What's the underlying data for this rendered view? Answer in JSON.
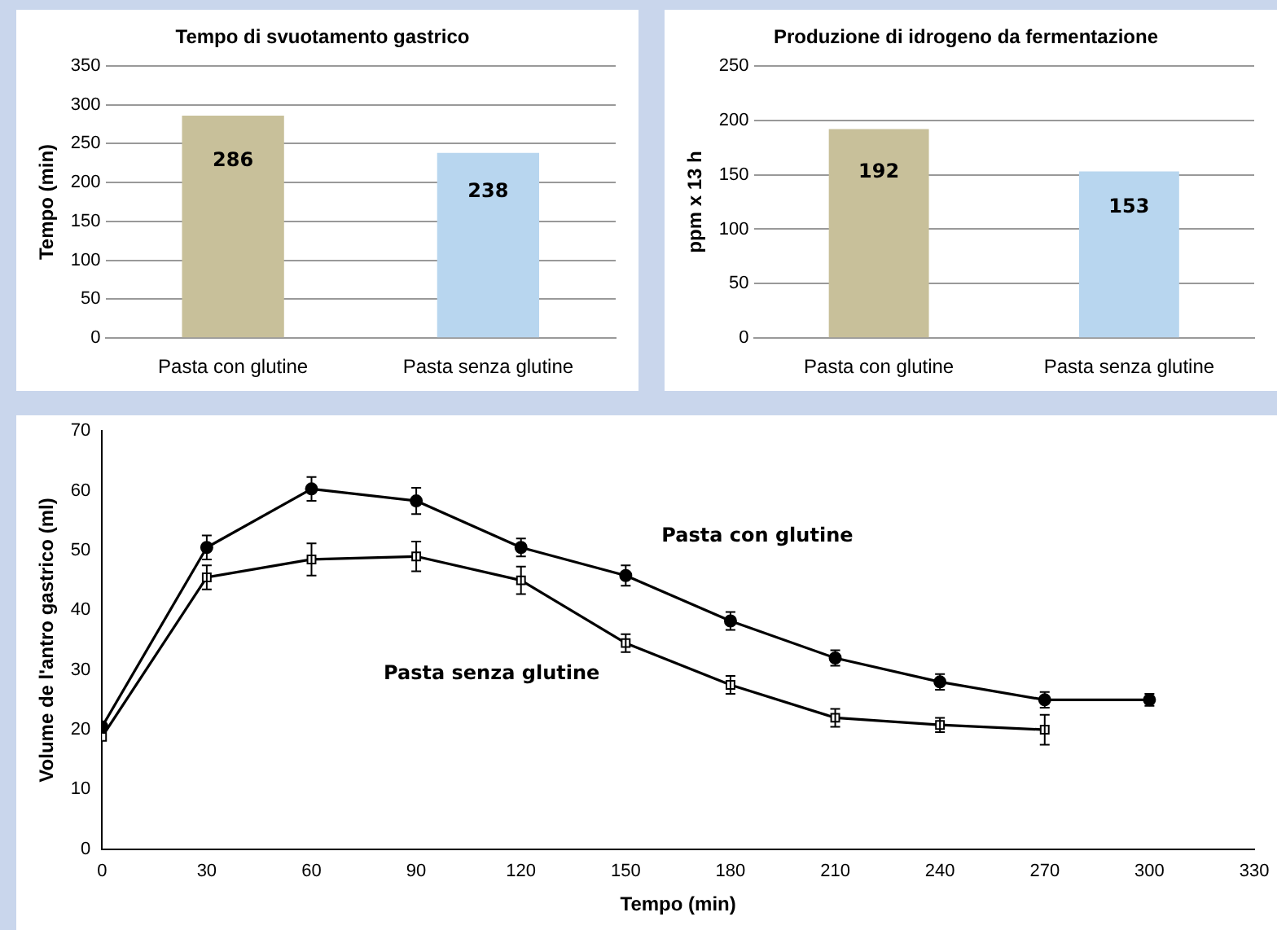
{
  "chart_data": [
    {
      "type": "bar",
      "title": "Tempo di svuotamento gastrico",
      "ylabel": "Tempo (min)",
      "categories": [
        "Pasta con glutine",
        "Pasta senza glutine"
      ],
      "values": [
        286,
        238
      ],
      "colors": [
        "#c8c09a",
        "#b8d6ef"
      ],
      "ylim": [
        0,
        350
      ],
      "yticks": [
        0,
        50,
        100,
        150,
        200,
        250,
        300,
        350
      ],
      "grid": "y",
      "data_labels": true,
      "legend": false
    },
    {
      "type": "bar",
      "title": "Produzione di idrogeno da fermentazione",
      "ylabel": "ppm x 13 h",
      "categories": [
        "Pasta con glutine",
        "Pasta senza glutine"
      ],
      "values": [
        192,
        153
      ],
      "colors": [
        "#c8c09a",
        "#b8d6ef"
      ],
      "ylim": [
        0,
        250
      ],
      "yticks": [
        0,
        50,
        100,
        150,
        200,
        250
      ],
      "grid": "y",
      "data_labels": true,
      "legend": false
    },
    {
      "type": "line",
      "xlabel": "Tempo (min)",
      "ylabel": "Volume de l'antro gastrico (ml)",
      "x": [
        0,
        30,
        60,
        90,
        120,
        150,
        180,
        210,
        240,
        270,
        300
      ],
      "xlim": [
        0,
        330
      ],
      "xticks": [
        0,
        30,
        60,
        90,
        120,
        150,
        180,
        210,
        240,
        270,
        300,
        330
      ],
      "ylim": [
        0,
        70
      ],
      "yticks": [
        0,
        10,
        20,
        30,
        40,
        50,
        60,
        70
      ],
      "grid": false,
      "legend": false,
      "series": [
        {
          "name": "Pasta con glutine",
          "color": "#000000",
          "marker": "circle",
          "values": [
            20.5,
            50.5,
            60.3,
            58.3,
            50.5,
            45.8,
            38.2,
            32,
            28,
            25,
            25
          ],
          "errors": [
            null,
            2,
            2,
            2.2,
            1.5,
            1.7,
            1.5,
            1.3,
            1.3,
            1.3,
            1
          ]
        },
        {
          "name": "Pasta senza glutine",
          "color": "#000000",
          "marker": "square",
          "x": [
            0,
            30,
            60,
            90,
            120,
            150,
            180,
            210,
            240,
            270
          ],
          "values": [
            18.8,
            45.5,
            48.5,
            49,
            45,
            34.5,
            27.5,
            22,
            20.8,
            20
          ],
          "errors": [
            null,
            2,
            2.7,
            2.5,
            2.3,
            1.5,
            1.5,
            1.5,
            1.2,
            2.5
          ]
        }
      ]
    }
  ]
}
